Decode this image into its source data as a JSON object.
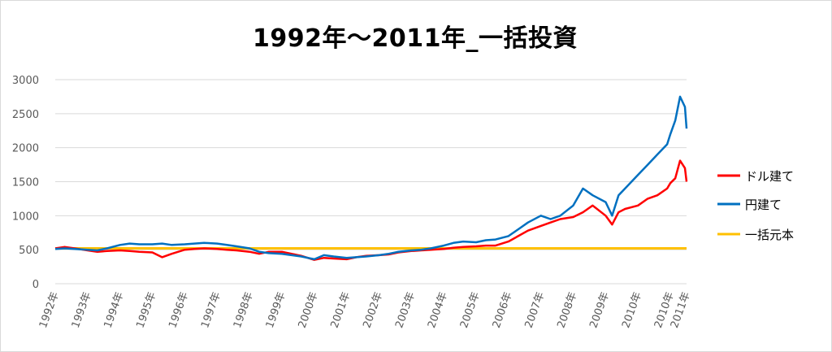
{
  "chart_data": {
    "type": "line",
    "title": "1992年～2011年_一括投資",
    "xlabel": "",
    "ylabel": "",
    "ylim": [
      0,
      3000
    ],
    "yticks": [
      0,
      500,
      1000,
      1500,
      2000,
      2500,
      3000
    ],
    "xlim": [
      1992,
      2011.5
    ],
    "xtick_labels": [
      "1992年",
      "1993年",
      "1994年",
      "1995年",
      "1996年",
      "1997年",
      "1998年",
      "1999年",
      "2000年",
      "2001年",
      "2002年",
      "2003年",
      "2004年",
      "2005年",
      "2006年",
      "2007年",
      "2008年",
      "2009年",
      "2010年",
      "2010年",
      "2011年"
    ],
    "xtick_positions": [
      1992.0,
      1993.0,
      1994.0,
      1995.0,
      1996.0,
      1997.0,
      1998.0,
      1999.0,
      2000.0,
      2001.0,
      2002.0,
      2003.0,
      2004.0,
      2005.0,
      2006.0,
      2007.0,
      2008.0,
      2009.0,
      2010.0,
      2011.0,
      2011.5
    ],
    "grid": true,
    "legend_position": "right",
    "series": [
      {
        "name": "ドル建て",
        "color": "#ff0000",
        "x": [
          1992.0,
          1992.3,
          1992.6,
          1993.0,
          1993.3,
          1993.6,
          1994.0,
          1994.3,
          1994.6,
          1995.0,
          1995.3,
          1995.6,
          1996.0,
          1996.3,
          1996.6,
          1997.0,
          1997.3,
          1997.6,
          1998.0,
          1998.3,
          1998.6,
          1999.0,
          1999.3,
          1999.6,
          2000.0,
          2000.3,
          2000.6,
          2001.0,
          2001.3,
          2001.6,
          2002.0,
          2002.3,
          2002.6,
          2003.0,
          2003.3,
          2003.6,
          2004.0,
          2004.3,
          2004.6,
          2005.0,
          2005.3,
          2005.6,
          2006.0,
          2006.3,
          2006.6,
          2007.0,
          2007.3,
          2007.6,
          2008.0,
          2008.3,
          2008.6,
          2009.0,
          2009.2,
          2009.4,
          2009.6,
          2010.0,
          2010.3,
          2010.6,
          2010.9,
          2011.0,
          2011.15,
          2011.3,
          2011.45,
          2011.5
        ],
        "values": [
          520,
          540,
          520,
          490,
          470,
          480,
          490,
          480,
          470,
          460,
          390,
          440,
          500,
          510,
          520,
          510,
          500,
          490,
          470,
          440,
          470,
          470,
          440,
          410,
          350,
          380,
          370,
          360,
          390,
          410,
          420,
          430,
          460,
          480,
          490,
          500,
          510,
          530,
          540,
          550,
          560,
          560,
          620,
          700,
          780,
          850,
          900,
          950,
          980,
          1050,
          1150,
          1000,
          870,
          1050,
          1100,
          1150,
          1250,
          1300,
          1400,
          1480,
          1550,
          1810,
          1700,
          1500
        ]
      },
      {
        "name": "円建て",
        "color": "#0070c0",
        "x": [
          1992.0,
          1992.3,
          1992.6,
          1993.0,
          1993.3,
          1993.6,
          1994.0,
          1994.3,
          1994.6,
          1995.0,
          1995.3,
          1995.6,
          1996.0,
          1996.3,
          1996.6,
          1997.0,
          1997.3,
          1997.6,
          1998.0,
          1998.3,
          1998.6,
          1999.0,
          1999.3,
          1999.6,
          2000.0,
          2000.3,
          2000.6,
          2001.0,
          2001.3,
          2001.6,
          2002.0,
          2002.3,
          2002.6,
          2003.0,
          2003.3,
          2003.6,
          2004.0,
          2004.3,
          2004.6,
          2005.0,
          2005.3,
          2005.6,
          2006.0,
          2006.3,
          2006.6,
          2007.0,
          2007.3,
          2007.6,
          2008.0,
          2008.3,
          2008.6,
          2009.0,
          2009.2,
          2009.4,
          2009.6,
          2010.0,
          2010.3,
          2010.6,
          2010.9,
          2011.0,
          2011.15,
          2011.3,
          2011.45,
          2011.5
        ],
        "values": [
          510,
          520,
          510,
          500,
          490,
          520,
          570,
          590,
          580,
          580,
          590,
          570,
          580,
          590,
          600,
          590,
          570,
          550,
          520,
          470,
          450,
          440,
          420,
          400,
          360,
          420,
          400,
          380,
          390,
          400,
          420,
          440,
          470,
          490,
          500,
          520,
          560,
          600,
          620,
          610,
          640,
          650,
          700,
          800,
          900,
          1000,
          950,
          1000,
          1150,
          1400,
          1300,
          1200,
          1000,
          1300,
          1400,
          1600,
          1750,
          1900,
          2050,
          2200,
          2400,
          2750,
          2600,
          2280
        ]
      },
      {
        "name": "一括元本",
        "color": "#ffc000",
        "x": [
          1992.0,
          2011.5
        ],
        "values": [
          520,
          520
        ]
      }
    ]
  }
}
